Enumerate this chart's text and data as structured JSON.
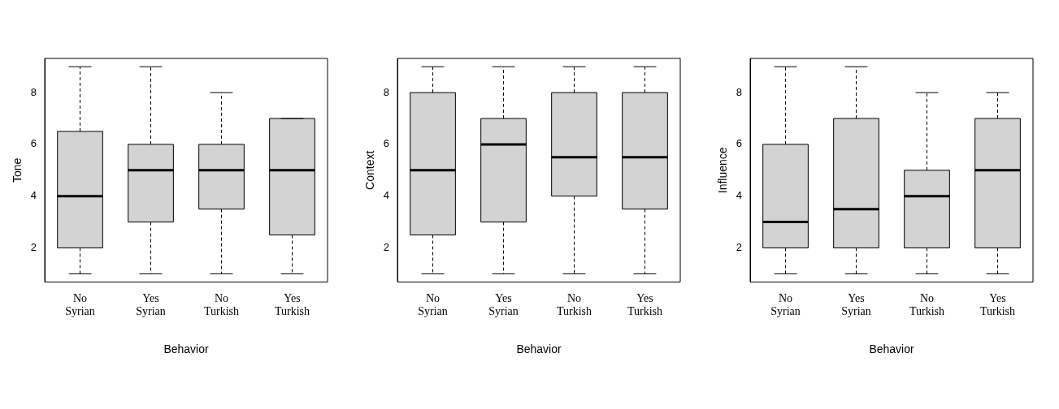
{
  "chart_data": [
    {
      "type": "box",
      "xlabel": "Behavior",
      "ylabel": "Tone",
      "categories": [
        "No\nSyrian",
        "Yes\nSyrian",
        "No\nTurkish",
        "Yes\nTurkish"
      ],
      "color": "#d3d3d3",
      "ylim": [
        0.68,
        9.32
      ],
      "yticks": [
        2,
        4,
        6,
        8
      ],
      "grid": false,
      "legend": false,
      "boxes": [
        {
          "low": 1,
          "q1": 2,
          "median": 4,
          "q3": 6.5,
          "high": 9
        },
        {
          "low": 1,
          "q1": 3,
          "median": 5,
          "q3": 6,
          "high": 9
        },
        {
          "low": 1,
          "q1": 3.5,
          "median": 5,
          "q3": 6,
          "high": 8
        },
        {
          "low": 1,
          "q1": 2.5,
          "median": 5,
          "q3": 7,
          "high": 7
        }
      ]
    },
    {
      "type": "box",
      "xlabel": "Behavior",
      "ylabel": "Context",
      "categories": [
        "No\nSyrian",
        "Yes\nSyrian",
        "No\nTurkish",
        "Yes\nTurkish"
      ],
      "color": "#d3d3d3",
      "ylim": [
        0.68,
        9.32
      ],
      "yticks": [
        2,
        4,
        6,
        8
      ],
      "grid": false,
      "legend": false,
      "boxes": [
        {
          "low": 1,
          "q1": 2.5,
          "median": 5,
          "q3": 8,
          "high": 9
        },
        {
          "low": 1,
          "q1": 3,
          "median": 6,
          "q3": 7,
          "high": 9
        },
        {
          "low": 1,
          "q1": 4,
          "median": 5.5,
          "q3": 8,
          "high": 9
        },
        {
          "low": 1,
          "q1": 3.5,
          "median": 5.5,
          "q3": 8,
          "high": 9
        }
      ]
    },
    {
      "type": "box",
      "xlabel": "Behavior",
      "ylabel": "Influence",
      "categories": [
        "No\nSyrian",
        "Yes\nSyrian",
        "No\nTurkish",
        "Yes\nTurkish"
      ],
      "color": "#d3d3d3",
      "ylim": [
        0.68,
        9.32
      ],
      "yticks": [
        2,
        4,
        6,
        8
      ],
      "grid": false,
      "legend": false,
      "boxes": [
        {
          "low": 1,
          "q1": 2,
          "median": 3,
          "q3": 6,
          "high": 9
        },
        {
          "low": 1,
          "q1": 2,
          "median": 3.5,
          "q3": 7,
          "high": 9
        },
        {
          "low": 1,
          "q1": 2,
          "median": 4,
          "q3": 5,
          "high": 8
        },
        {
          "low": 1,
          "q1": 2,
          "median": 5,
          "q3": 7,
          "high": 8
        }
      ]
    }
  ]
}
